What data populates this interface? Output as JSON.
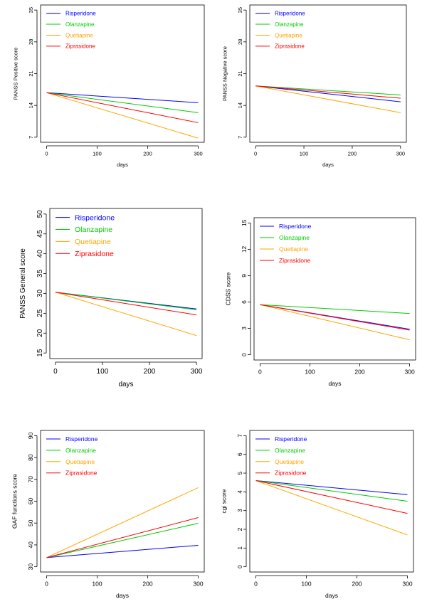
{
  "colors": {
    "Risperidone": "#0000ff",
    "Olanzapine": "#00cc00",
    "Quetiapine": "#ffa500",
    "Ziprasidone": "#ff0000"
  },
  "chart_data": [
    {
      "type": "line",
      "xlabel": "days",
      "ylabel": "PANSS Positive score",
      "xlim": [
        0,
        300
      ],
      "ylim": [
        7,
        35
      ],
      "xticks": [
        0,
        100,
        200,
        300
      ],
      "yticks": [
        7,
        14,
        21,
        28,
        35
      ],
      "legend_position": "top-left",
      "grid": false,
      "x": [
        0,
        300
      ],
      "series": [
        {
          "name": "Risperidone",
          "values": [
            16.8,
            14.6
          ]
        },
        {
          "name": "Olanzapine",
          "values": [
            16.8,
            12.4
          ]
        },
        {
          "name": "Quetiapine",
          "values": [
            16.8,
            6.8
          ]
        },
        {
          "name": "Ziprasidone",
          "values": [
            16.8,
            10.2
          ]
        }
      ]
    },
    {
      "type": "line",
      "xlabel": "days",
      "ylabel": "PANSS Negative score",
      "xlim": [
        0,
        300
      ],
      "ylim": [
        7,
        35
      ],
      "xticks": [
        0,
        100,
        200,
        300
      ],
      "yticks": [
        7,
        14,
        21,
        28,
        35
      ],
      "legend_position": "top-left",
      "grid": false,
      "x": [
        0,
        300
      ],
      "series": [
        {
          "name": "Risperidone",
          "values": [
            18.3,
            14.8
          ]
        },
        {
          "name": "Olanzapine",
          "values": [
            18.3,
            16.3
          ]
        },
        {
          "name": "Quetiapine",
          "values": [
            18.3,
            12.4
          ]
        },
        {
          "name": "Ziprasidone",
          "values": [
            18.3,
            15.6
          ]
        }
      ]
    },
    {
      "type": "line",
      "xlabel": "days",
      "ylabel": "PANSS General score",
      "xlim": [
        0,
        300
      ],
      "ylim": [
        15,
        50
      ],
      "xticks": [
        0,
        100,
        200,
        300
      ],
      "yticks": [
        15,
        20,
        25,
        30,
        35,
        40,
        45,
        50
      ],
      "legend_position": "top-left",
      "grid": false,
      "x": [
        0,
        300
      ],
      "series": [
        {
          "name": "Risperidone",
          "values": [
            30.3,
            26.1
          ]
        },
        {
          "name": "Olanzapine",
          "values": [
            30.3,
            25.9
          ]
        },
        {
          "name": "Quetiapine",
          "values": [
            30.3,
            19.4
          ]
        },
        {
          "name": "Ziprasidone",
          "values": [
            30.3,
            24.6
          ]
        }
      ]
    },
    {
      "type": "line",
      "xlabel": "days",
      "ylabel": "CDSS score",
      "xlim": [
        0,
        300
      ],
      "ylim": [
        0,
        15
      ],
      "xticks": [
        0,
        100,
        200,
        300
      ],
      "yticks": [
        0,
        3,
        6,
        9,
        12,
        15
      ],
      "legend_position": "top-left",
      "grid": false,
      "x": [
        0,
        300
      ],
      "series": [
        {
          "name": "Risperidone",
          "values": [
            5.7,
            2.9
          ]
        },
        {
          "name": "Olanzapine",
          "values": [
            5.7,
            4.7
          ]
        },
        {
          "name": "Quetiapine",
          "values": [
            5.7,
            1.7
          ]
        },
        {
          "name": "Ziprasidone",
          "values": [
            5.7,
            2.8
          ]
        }
      ]
    },
    {
      "type": "line",
      "xlabel": "days",
      "ylabel": "GAF functions score",
      "xlim": [
        0,
        300
      ],
      "ylim": [
        30,
        90
      ],
      "xticks": [
        0,
        100,
        200,
        300
      ],
      "yticks": [
        30,
        40,
        50,
        60,
        70,
        80,
        90
      ],
      "legend_position": "top-left",
      "grid": false,
      "x": [
        0,
        300
      ],
      "series": [
        {
          "name": "Risperidone",
          "values": [
            34.2,
            39.8
          ]
        },
        {
          "name": "Olanzapine",
          "values": [
            34.2,
            49.9
          ]
        },
        {
          "name": "Quetiapine",
          "values": [
            34.2,
            66.2
          ]
        },
        {
          "name": "Ziprasidone",
          "values": [
            34.2,
            52.5
          ]
        }
      ]
    },
    {
      "type": "line",
      "xlabel": "days",
      "ylabel": "cgi score",
      "xlim": [
        0,
        300
      ],
      "ylim": [
        0,
        7
      ],
      "xticks": [
        0,
        100,
        200,
        300
      ],
      "yticks": [
        0,
        1,
        2,
        3,
        4,
        5,
        6,
        7
      ],
      "legend_position": "top-left",
      "grid": false,
      "x": [
        0,
        300
      ],
      "series": [
        {
          "name": "Risperidone",
          "values": [
            4.6,
            3.85
          ]
        },
        {
          "name": "Olanzapine",
          "values": [
            4.6,
            3.5
          ]
        },
        {
          "name": "Quetiapine",
          "values": [
            4.6,
            1.7
          ]
        },
        {
          "name": "Ziprasidone",
          "values": [
            4.6,
            2.85
          ]
        }
      ]
    }
  ]
}
